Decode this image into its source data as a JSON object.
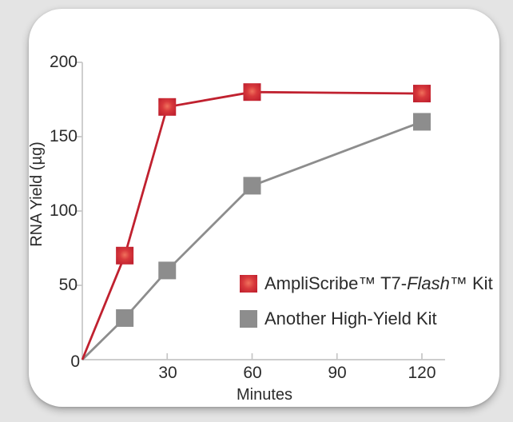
{
  "chart_data": {
    "type": "line",
    "title": "",
    "xlabel": "Minutes",
    "ylabel": "RNA Yield (µg)",
    "x": [
      0,
      15,
      30,
      60,
      120
    ],
    "series": [
      {
        "name": "AmpliScribe™ T7-Flash™ Kit",
        "values": [
          0,
          70,
          170,
          180,
          179
        ]
      },
      {
        "name": "Another High-Yield Kit",
        "values": [
          0,
          28,
          60,
          117,
          160
        ]
      }
    ],
    "xlim": [
      0,
      128
    ],
    "ylim": [
      0,
      200
    ],
    "x_ticks": [
      30,
      60,
      90,
      120
    ],
    "x_tick_labels": [
      "30",
      "60",
      "90",
      "120"
    ],
    "y_ticks": [
      50,
      100,
      150,
      200
    ],
    "y_tick_labels": [
      "50",
      "100",
      "150",
      "200"
    ],
    "origin_label": "0",
    "grid": false,
    "marker": "square",
    "marker_at_origin": false,
    "legend_position": "inside-bottom-right"
  },
  "legend": {
    "items": [
      {
        "prefix": "AmpliScribe™ T7-",
        "italic_word": "Flash",
        "suffix": "™ Kit"
      },
      {
        "label": "Another High-Yield Kit"
      }
    ]
  },
  "colors": {
    "red_line": "#c0212f",
    "red_marker_edge": "#c0212f",
    "red_marker_mid": "#d8393c",
    "red_marker_center": "#f0715c",
    "gray_series": "#8d8d8d",
    "axis": "#c6c6c6",
    "text": "#2b2b2b",
    "card_background": "#ffffff",
    "page_background": "#e4e4e4"
  }
}
